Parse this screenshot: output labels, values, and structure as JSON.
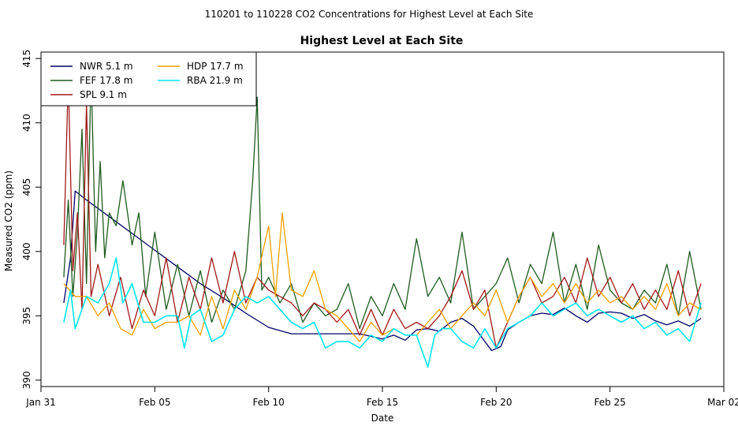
{
  "suptitle": "110201  to  110228 CO2 Concentrations for Highest Level at Each Site",
  "chart_data": {
    "type": "line",
    "title": "Highest Level at Each Site",
    "xlabel": "Date",
    "ylabel": "Measured CO2 (ppm)",
    "xlim": [
      0,
      30
    ],
    "ylim": [
      389.5,
      415.5
    ],
    "x_ticks": [
      {
        "value": 0,
        "label": "Jan 31"
      },
      {
        "value": 5,
        "label": "Feb 05"
      },
      {
        "value": 10,
        "label": "Feb 10"
      },
      {
        "value": 15,
        "label": "Feb 15"
      },
      {
        "value": 20,
        "label": "Feb 20"
      },
      {
        "value": 25,
        "label": "Feb 25"
      },
      {
        "value": 30,
        "label": "Mar 02"
      }
    ],
    "y_ticks": [
      {
        "value": 390,
        "label": "390"
      },
      {
        "value": 395,
        "label": "395"
      },
      {
        "value": 400,
        "label": "400"
      },
      {
        "value": 405,
        "label": "405"
      },
      {
        "value": 410,
        "label": "410"
      },
      {
        "value": 415,
        "label": "415"
      }
    ],
    "legend": [
      {
        "name": "NWR",
        "height": "5.1 m",
        "color": "#000066"
      },
      {
        "name": "FEF",
        "height": "17.8 m",
        "color": "#1e5a1e"
      },
      {
        "name": "SPL",
        "height": "9.1 m",
        "color": "#a01818"
      },
      {
        "name": "HDP",
        "height": "17.7 m",
        "color": "#f0a000"
      },
      {
        "name": "RBA",
        "height": "21.9 m",
        "color": "#00e5ee"
      }
    ],
    "series": [
      {
        "name": "NWR",
        "color": "#000066",
        "x": [
          1.0,
          1.3,
          1.5,
          2.0,
          3.0,
          4.0,
          5.0,
          6.0,
          7.0,
          8.0,
          9.0,
          10.0,
          11.0,
          12.0,
          13.0,
          14.0,
          14.5,
          15.0,
          15.5,
          16.0,
          16.5,
          17.0,
          17.5,
          18.0,
          18.5,
          19.0,
          19.5,
          19.8,
          20.2,
          20.5,
          21.0,
          21.5,
          22.0,
          22.5,
          23.0,
          23.5,
          24.0,
          24.5,
          25.0,
          25.5,
          26.0,
          26.5,
          27.0,
          27.5,
          28.0,
          28.5,
          29.0
        ],
        "y": [
          396.0,
          399.5,
          404.7,
          404.0,
          402.7,
          401.4,
          400.1,
          398.8,
          397.5,
          396.4,
          395.2,
          394.1,
          393.6,
          393.6,
          393.6,
          393.6,
          393.4,
          393.2,
          393.5,
          393.1,
          393.9,
          394.0,
          393.8,
          394.5,
          394.8,
          394.2,
          393.0,
          392.3,
          392.6,
          393.9,
          394.5,
          395.0,
          395.2,
          395.1,
          395.6,
          395.0,
          394.5,
          395.2,
          395.3,
          395.2,
          394.8,
          395.1,
          394.6,
          394.3,
          394.6,
          394.2,
          394.8
        ]
      },
      {
        "name": "FEF",
        "color": "#1e5a1e",
        "x": [
          1.0,
          1.2,
          1.4,
          1.6,
          1.8,
          2.0,
          2.2,
          2.4,
          2.6,
          2.8,
          3.0,
          3.3,
          3.6,
          4.0,
          4.3,
          4.6,
          5.0,
          5.5,
          6.0,
          6.5,
          7.0,
          7.5,
          8.0,
          8.5,
          9.0,
          9.3,
          9.5,
          9.7,
          10.0,
          10.5,
          11.0,
          11.5,
          12.0,
          12.5,
          13.0,
          13.5,
          14.0,
          14.5,
          15.0,
          15.5,
          16.0,
          16.5,
          17.0,
          17.5,
          18.0,
          18.5,
          19.0,
          19.5,
          20.0,
          20.5,
          21.0,
          21.5,
          22.0,
          22.5,
          23.0,
          23.5,
          24.0,
          24.5,
          25.0,
          25.5,
          26.0,
          26.5,
          27.0,
          27.5,
          28.0,
          28.5,
          29.0
        ],
        "y": [
          398.0,
          404.0,
          396.5,
          401.5,
          409.5,
          397.5,
          414.0,
          400.0,
          407.0,
          399.5,
          403.0,
          402.0,
          405.5,
          400.5,
          403.0,
          396.5,
          401.5,
          395.5,
          399.0,
          395.0,
          398.5,
          394.5,
          397.0,
          395.5,
          398.5,
          405.5,
          412.0,
          397.0,
          398.0,
          396.0,
          397.5,
          394.5,
          396.0,
          395.0,
          395.5,
          397.5,
          394.0,
          396.5,
          395.0,
          397.5,
          395.5,
          401.0,
          396.5,
          398.0,
          396.0,
          401.5,
          395.5,
          396.5,
          397.5,
          399.5,
          396.0,
          399.0,
          397.5,
          401.5,
          396.0,
          399.0,
          395.5,
          400.5,
          397.0,
          396.0,
          395.5,
          397.0,
          396.0,
          399.0,
          395.0,
          400.0,
          395.5
        ]
      },
      {
        "name": "SPL",
        "color": "#a01818",
        "x": [
          1.0,
          1.2,
          1.4,
          1.6,
          1.8,
          2.0,
          2.2,
          2.5,
          3.0,
          3.5,
          4.0,
          4.5,
          5.0,
          5.5,
          6.0,
          6.5,
          7.0,
          7.5,
          8.0,
          8.5,
          9.0,
          9.5,
          10.0,
          10.5,
          11.0,
          11.5,
          12.0,
          12.5,
          13.0,
          13.5,
          14.0,
          14.5,
          15.0,
          15.5,
          16.0,
          16.5,
          17.0,
          17.5,
          18.0,
          18.5,
          19.0,
          19.5,
          20.0,
          20.5,
          21.0,
          21.5,
          22.0,
          22.5,
          23.0,
          23.5,
          24.0,
          24.5,
          25.0,
          25.5,
          26.0,
          26.5,
          27.0,
          27.5,
          28.0,
          28.5,
          29.0
        ],
        "y": [
          400.5,
          413.5,
          398.5,
          403.0,
          395.5,
          411.5,
          396.5,
          399.0,
          395.0,
          398.0,
          394.0,
          397.0,
          395.0,
          399.5,
          394.5,
          398.0,
          395.5,
          399.5,
          396.0,
          400.0,
          396.0,
          398.0,
          397.0,
          396.5,
          396.0,
          395.0,
          396.0,
          395.5,
          394.5,
          395.5,
          393.5,
          395.5,
          393.5,
          395.5,
          394.0,
          394.5,
          394.0,
          395.0,
          396.5,
          398.5,
          395.5,
          397.0,
          392.5,
          394.5,
          396.5,
          398.0,
          396.0,
          396.5,
          398.0,
          396.0,
          399.5,
          396.5,
          398.0,
          396.0,
          397.5,
          395.5,
          397.0,
          395.5,
          398.5,
          395.0,
          397.5
        ]
      },
      {
        "name": "HDP",
        "color": "#f0a000",
        "x": [
          1.0,
          1.5,
          2.0,
          2.5,
          3.0,
          3.5,
          4.0,
          4.5,
          5.0,
          5.5,
          6.0,
          6.5,
          7.0,
          7.5,
          8.0,
          8.5,
          9.0,
          9.5,
          10.0,
          10.3,
          10.6,
          11.0,
          11.5,
          12.0,
          12.5,
          13.0,
          13.5,
          14.0,
          14.5,
          15.0,
          15.5,
          16.0,
          16.5,
          17.0,
          17.5,
          18.0,
          18.5,
          19.0,
          19.5,
          20.0,
          20.5,
          21.0,
          21.5,
          22.0,
          22.5,
          23.0,
          23.5,
          24.0,
          24.5,
          25.0,
          25.5,
          26.0,
          26.5,
          27.0,
          27.5,
          28.0,
          28.5,
          29.0
        ],
        "y": [
          397.5,
          396.5,
          396.5,
          395.0,
          396.0,
          394.0,
          393.5,
          395.5,
          394.0,
          394.5,
          394.5,
          395.0,
          393.5,
          396.5,
          394.0,
          397.0,
          395.5,
          398.0,
          402.0,
          396.5,
          403.0,
          397.0,
          396.5,
          398.5,
          395.5,
          395.0,
          394.0,
          393.0,
          394.5,
          393.5,
          394.0,
          393.5,
          393.5,
          394.5,
          395.5,
          394.0,
          395.0,
          396.0,
          395.0,
          397.0,
          394.5,
          396.5,
          398.0,
          396.5,
          397.5,
          396.0,
          397.5,
          396.0,
          397.0,
          396.0,
          396.5,
          395.5,
          396.5,
          395.5,
          397.5,
          395.0,
          396.0,
          395.5
        ]
      },
      {
        "name": "RBA",
        "color": "#00e5ee",
        "x": [
          1.0,
          1.3,
          1.5,
          2.0,
          2.5,
          3.0,
          3.3,
          3.6,
          4.0,
          4.5,
          5.0,
          5.5,
          6.0,
          6.3,
          6.6,
          7.0,
          7.5,
          8.0,
          8.5,
          9.0,
          9.5,
          10.0,
          10.5,
          11.0,
          11.5,
          12.0,
          12.5,
          13.0,
          13.5,
          14.0,
          14.5,
          15.0,
          15.5,
          16.0,
          16.5,
          17.0,
          17.3,
          17.6,
          18.0,
          18.5,
          19.0,
          19.5,
          20.0,
          20.5,
          21.0,
          21.5,
          22.0,
          22.5,
          23.0,
          23.5,
          24.0,
          24.5,
          25.0,
          25.5,
          26.0,
          26.5,
          27.0,
          27.5,
          28.0,
          28.5,
          29.0
        ],
        "y": [
          394.5,
          397.0,
          394.0,
          396.5,
          396.0,
          397.5,
          399.5,
          396.0,
          397.5,
          394.5,
          394.5,
          395.0,
          395.0,
          392.5,
          395.0,
          395.5,
          393.0,
          393.5,
          395.5,
          396.5,
          396.0,
          396.5,
          395.5,
          394.5,
          394.0,
          394.5,
          392.5,
          393.0,
          393.0,
          392.5,
          393.5,
          393.0,
          394.0,
          393.5,
          393.5,
          391.0,
          393.5,
          394.0,
          394.0,
          393.0,
          392.5,
          394.0,
          392.5,
          394.0,
          394.5,
          395.0,
          396.0,
          395.0,
          395.5,
          396.0,
          395.0,
          395.5,
          395.0,
          394.5,
          395.0,
          394.0,
          394.5,
          393.5,
          394.0,
          393.0,
          396.0
        ]
      }
    ]
  }
}
